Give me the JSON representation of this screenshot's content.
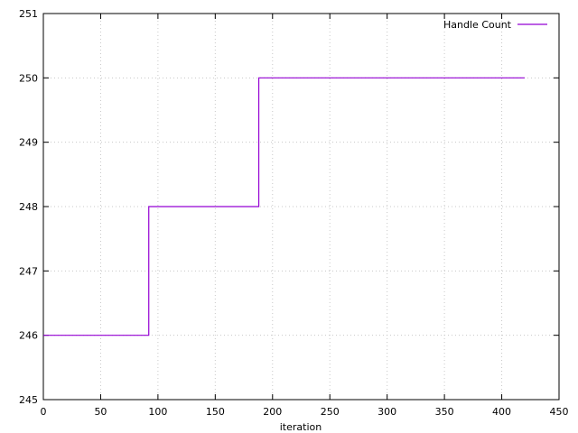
{
  "chart_data": {
    "type": "line",
    "title": "",
    "xlabel": "iteration",
    "ylabel": "",
    "xlim": [
      0,
      450
    ],
    "ylim": [
      245,
      251
    ],
    "xticks": [
      0,
      50,
      100,
      150,
      200,
      250,
      300,
      350,
      400,
      450
    ],
    "yticks": [
      245,
      246,
      247,
      248,
      249,
      250,
      251
    ],
    "grid": true,
    "legend_position": "top-right",
    "series": [
      {
        "name": "Handle Count",
        "color": "#9400d3",
        "step": "post",
        "x": [
          0,
          92,
          188,
          420
        ],
        "y": [
          246,
          248,
          250,
          250
        ]
      }
    ]
  }
}
